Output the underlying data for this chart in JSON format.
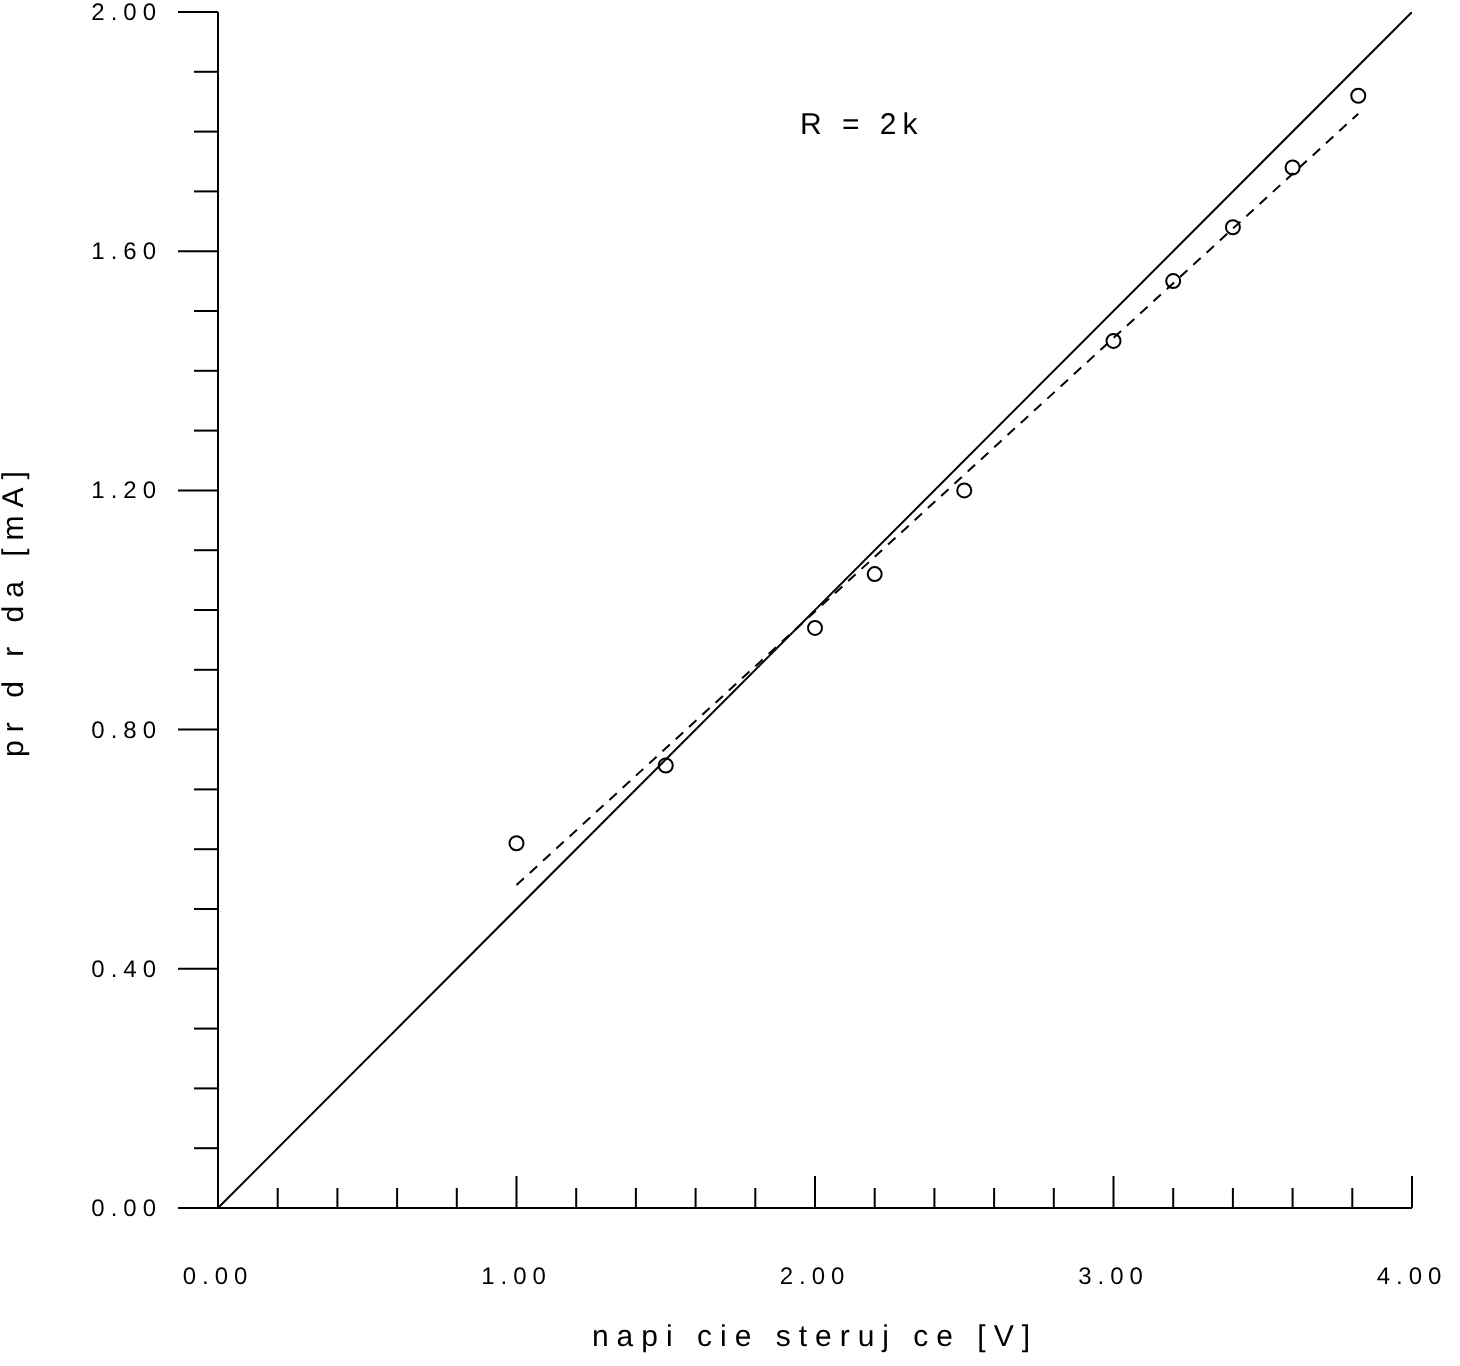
{
  "chart_data": {
    "type": "scatter",
    "xlabel": "napi cie steruj ce [V]",
    "ylabel": "pr d r da [mA]",
    "annotations": [
      "R = 2k"
    ],
    "xlim": [
      0,
      4
    ],
    "ylim": [
      0,
      2
    ],
    "xticks": [
      {
        "value": 0,
        "label": "0.00"
      },
      {
        "value": 0.2,
        "label": null
      },
      {
        "value": 0.4,
        "label": null
      },
      {
        "value": 0.6,
        "label": null
      },
      {
        "value": 0.8,
        "label": null
      },
      {
        "value": 1,
        "label": "1.00"
      },
      {
        "value": 1.2,
        "label": null
      },
      {
        "value": 1.4,
        "label": null
      },
      {
        "value": 1.6,
        "label": null
      },
      {
        "value": 1.8,
        "label": null
      },
      {
        "value": 2,
        "label": "2.00"
      },
      {
        "value": 2.2,
        "label": null
      },
      {
        "value": 2.4,
        "label": null
      },
      {
        "value": 2.6,
        "label": null
      },
      {
        "value": 2.8,
        "label": null
      },
      {
        "value": 3,
        "label": "3.00"
      },
      {
        "value": 3.2,
        "label": null
      },
      {
        "value": 3.4,
        "label": null
      },
      {
        "value": 3.6,
        "label": null
      },
      {
        "value": 3.8,
        "label": null
      },
      {
        "value": 4,
        "label": "4.00"
      }
    ],
    "yticks": [
      {
        "value": 0,
        "label": "0.00"
      },
      {
        "value": 0.1,
        "label": null
      },
      {
        "value": 0.2,
        "label": null
      },
      {
        "value": 0.3,
        "label": null
      },
      {
        "value": 0.4,
        "label": "0.40"
      },
      {
        "value": 0.5,
        "label": null
      },
      {
        "value": 0.6,
        "label": null
      },
      {
        "value": 0.7,
        "label": null
      },
      {
        "value": 0.8,
        "label": "0.80"
      },
      {
        "value": 0.9,
        "label": null
      },
      {
        "value": 1,
        "label": null
      },
      {
        "value": 1.1,
        "label": null
      },
      {
        "value": 1.2,
        "label": "1.20"
      },
      {
        "value": 1.3,
        "label": null
      },
      {
        "value": 1.4,
        "label": null
      },
      {
        "value": 1.5,
        "label": null
      },
      {
        "value": 1.6,
        "label": "1.60"
      },
      {
        "value": 1.7,
        "label": null
      },
      {
        "value": 1.8,
        "label": null
      },
      {
        "value": 1.9,
        "label": null
      },
      {
        "value": 2,
        "label": "2.00"
      }
    ],
    "grid": false,
    "legend": false,
    "series": [
      {
        "color": "#000000",
        "marker": "circle",
        "x": [
          1.0,
          1.5,
          2.0,
          2.2,
          2.5,
          3.0,
          3.2,
          3.4,
          3.6,
          3.82
        ],
        "values": [
          0.61,
          0.74,
          0.97,
          1.06,
          1.2,
          1.45,
          1.55,
          1.64,
          1.74,
          1.86
        ]
      },
      {
        "type": "line",
        "color": "#000000",
        "line_style": "solid",
        "marker": "none",
        "x": [
          0,
          4
        ],
        "values": [
          0,
          2
        ]
      },
      {
        "type": "line",
        "color": "#000000",
        "line_style": "dashed",
        "marker": "none",
        "x": [
          1.0,
          3.82
        ],
        "values": [
          0.54,
          1.83
        ]
      }
    ]
  }
}
